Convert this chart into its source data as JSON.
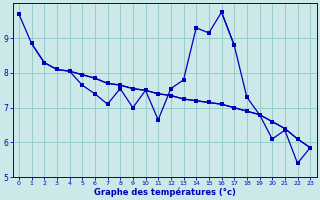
{
  "background_color": "#cce8e8",
  "grid_color": "#99cccc",
  "line_color": "#0000bb",
  "xlabel": "Graphe des températures (°c)",
  "xlabel_color": "#0000bb",
  "xlim": [
    -0.5,
    23.5
  ],
  "ylim": [
    5,
    10
  ],
  "yticks": [
    5,
    6,
    7,
    8,
    9
  ],
  "xticks": [
    0,
    1,
    2,
    3,
    4,
    5,
    6,
    7,
    8,
    9,
    10,
    11,
    12,
    13,
    14,
    15,
    16,
    17,
    18,
    19,
    20,
    21,
    22,
    23
  ],
  "lines": [
    {
      "x": [
        0,
        1,
        2,
        3,
        4,
        5,
        6,
        7,
        8,
        9,
        10,
        11,
        12,
        13,
        14,
        15,
        16,
        17,
        18,
        19,
        20,
        21,
        22,
        23
      ],
      "y": [
        9.7,
        8.85,
        8.3,
        8.1,
        8.05,
        7.95,
        7.85,
        7.7,
        7.65,
        7.55,
        7.5,
        7.4,
        7.35,
        7.25,
        7.2,
        7.15,
        7.1,
        7.0,
        6.9,
        6.8,
        6.6,
        6.4,
        6.1,
        5.85
      ]
    },
    {
      "x": [
        1,
        2,
        3,
        4,
        5,
        6,
        7,
        8,
        9,
        10,
        11,
        12,
        13,
        14,
        15,
        16,
        17,
        18,
        19,
        20,
        21,
        22,
        23
      ],
      "y": [
        8.85,
        8.3,
        8.1,
        8.05,
        7.95,
        7.85,
        7.7,
        7.65,
        7.55,
        7.5,
        7.4,
        7.35,
        7.25,
        7.2,
        7.15,
        7.1,
        7.0,
        6.9,
        6.8,
        6.6,
        6.4,
        6.1,
        5.85
      ]
    },
    {
      "x": [
        4,
        5,
        6,
        7,
        8,
        9,
        10,
        11
      ],
      "y": [
        8.05,
        7.65,
        7.4,
        7.1,
        7.55,
        7.0,
        7.5,
        6.65
      ]
    },
    {
      "x": [
        11,
        12,
        13,
        14,
        15,
        16,
        17
      ],
      "y": [
        6.65,
        7.55,
        7.8,
        9.3,
        9.15,
        9.75,
        8.8
      ]
    },
    {
      "x": [
        16,
        17,
        18,
        19,
        20,
        21,
        22,
        23
      ],
      "y": [
        9.75,
        8.8,
        7.3,
        6.8,
        6.1,
        6.35,
        5.4,
        5.85
      ]
    }
  ]
}
